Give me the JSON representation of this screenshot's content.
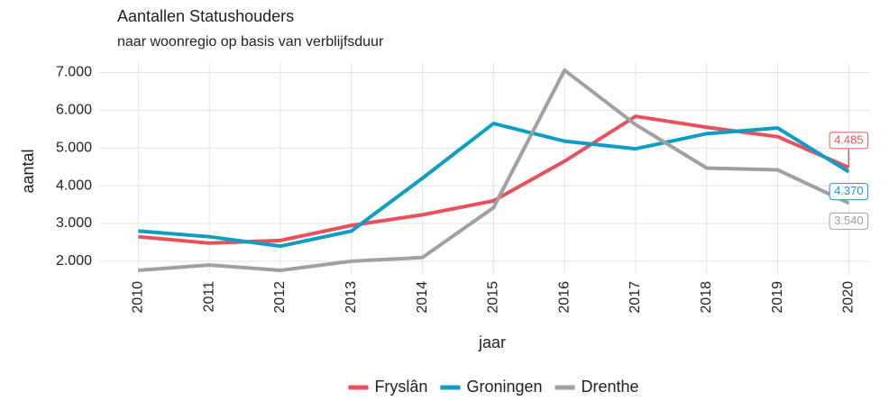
{
  "chart_data": {
    "type": "line",
    "title": "Aantallen Statushouders",
    "subtitle": "naar woonregio op basis van verblijfsduur",
    "x_label": "jaar",
    "y_label": "aantal",
    "x": [
      2010,
      2011,
      2012,
      2013,
      2014,
      2015,
      2016,
      2017,
      2018,
      2019,
      2020
    ],
    "xlim": [
      2009.45,
      2020.3
    ],
    "ylim": [
      1640,
      7250
    ],
    "yticks": [
      {
        "value": 2000,
        "label": "2.000"
      },
      {
        "value": 3000,
        "label": "3.000"
      },
      {
        "value": 4000,
        "label": "4.000"
      },
      {
        "value": 5000,
        "label": "5.000"
      },
      {
        "value": 6000,
        "label": "6.000"
      },
      {
        "value": 7000,
        "label": "7.000"
      }
    ],
    "grid": true,
    "legend": "bottom",
    "series": [
      {
        "name": "Fryslân",
        "color": "#e8505b",
        "values": [
          2650,
          2480,
          2550,
          2950,
          3230,
          3600,
          4650,
          5840,
          5550,
          5300,
          4485
        ],
        "value_labels": [
          null,
          null,
          null,
          null,
          null,
          null,
          null,
          null,
          null,
          null,
          "4.485"
        ]
      },
      {
        "name": "Groningen",
        "color": "#109dc4",
        "values": [
          2800,
          2650,
          2400,
          2800,
          4200,
          5650,
          5180,
          4980,
          5380,
          5530,
          4370
        ],
        "value_labels": [
          null,
          null,
          null,
          null,
          null,
          null,
          null,
          null,
          null,
          null,
          "4.370"
        ]
      },
      {
        "name": "Drenthe",
        "color": "#a0a0a0",
        "values": [
          1760,
          1900,
          1760,
          2000,
          2100,
          3420,
          7060,
          5620,
          4470,
          4420,
          3540
        ],
        "value_labels": [
          null,
          null,
          null,
          null,
          null,
          null,
          null,
          null,
          null,
          null,
          "3.540"
        ]
      }
    ]
  }
}
